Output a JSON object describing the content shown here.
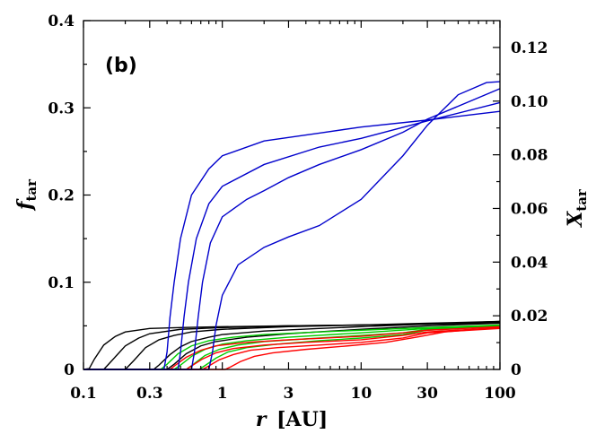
{
  "chart_data": {
    "type": "line",
    "panel_label": "(b)",
    "xlabel": {
      "main": "r",
      "unit": "[AU]"
    },
    "ylabel_left": {
      "main": "f",
      "sub": "tar"
    },
    "ylabel_right": {
      "main": "X",
      "sub": "tar"
    },
    "x_scale": "log",
    "xlim": [
      0.1,
      100
    ],
    "ylim_left": [
      0,
      0.4
    ],
    "ylim_right": [
      0,
      0.13
    ],
    "x_ticks": [
      {
        "value": 0.1,
        "label": "0.1"
      },
      {
        "value": 0.3,
        "label": "0.3"
      },
      {
        "value": 1,
        "label": "1"
      },
      {
        "value": 3,
        "label": "3"
      },
      {
        "value": 10,
        "label": "10"
      },
      {
        "value": 30,
        "label": "30"
      },
      {
        "value": 100,
        "label": "100"
      }
    ],
    "y_left_ticks": [
      {
        "value": 0,
        "label": "0"
      },
      {
        "value": 0.1,
        "label": "0.1"
      },
      {
        "value": 0.2,
        "label": "0.2"
      },
      {
        "value": 0.3,
        "label": "0.3"
      },
      {
        "value": 0.4,
        "label": "0.4"
      }
    ],
    "y_right_ticks": [
      {
        "value": 0,
        "label": "0"
      },
      {
        "value": 0.02,
        "label": "0.02"
      },
      {
        "value": 0.04,
        "label": "0.04"
      },
      {
        "value": 0.06,
        "label": "0.06"
      },
      {
        "value": 0.08,
        "label": "0.08"
      },
      {
        "value": 0.1,
        "label": "0.10"
      },
      {
        "value": 0.12,
        "label": "0.12"
      }
    ],
    "grid": false,
    "series": [
      {
        "color": "#000000",
        "points": [
          [
            0.1,
            0
          ],
          [
            0.11,
            0.001
          ],
          [
            0.12,
            0.012
          ],
          [
            0.14,
            0.028
          ],
          [
            0.17,
            0.038
          ],
          [
            0.2,
            0.043
          ],
          [
            0.3,
            0.047
          ],
          [
            0.5,
            0.048
          ],
          [
            1,
            0.049
          ],
          [
            3,
            0.05
          ],
          [
            10,
            0.051
          ],
          [
            30,
            0.052
          ],
          [
            100,
            0.053
          ]
        ]
      },
      {
        "color": "#000000",
        "points": [
          [
            0.1,
            0
          ],
          [
            0.14,
            0
          ],
          [
            0.16,
            0.01
          ],
          [
            0.2,
            0.027
          ],
          [
            0.25,
            0.036
          ],
          [
            0.3,
            0.041
          ],
          [
            0.5,
            0.046
          ],
          [
            1,
            0.048
          ],
          [
            3,
            0.05
          ],
          [
            10,
            0.051
          ],
          [
            30,
            0.052
          ],
          [
            100,
            0.054
          ]
        ]
      },
      {
        "color": "#000000",
        "points": [
          [
            0.1,
            0
          ],
          [
            0.2,
            0
          ],
          [
            0.23,
            0.01
          ],
          [
            0.28,
            0.025
          ],
          [
            0.35,
            0.034
          ],
          [
            0.45,
            0.039
          ],
          [
            0.6,
            0.043
          ],
          [
            1,
            0.046
          ],
          [
            3,
            0.049
          ],
          [
            10,
            0.051
          ],
          [
            30,
            0.053
          ],
          [
            100,
            0.055
          ]
        ]
      },
      {
        "color": "#000000",
        "points": [
          [
            0.1,
            0
          ],
          [
            0.32,
            0
          ],
          [
            0.35,
            0.005
          ],
          [
            0.42,
            0.017
          ],
          [
            0.5,
            0.026
          ],
          [
            0.6,
            0.032
          ],
          [
            0.8,
            0.037
          ],
          [
            1,
            0.04
          ],
          [
            2,
            0.044
          ],
          [
            5,
            0.047
          ],
          [
            10,
            0.049
          ],
          [
            30,
            0.052
          ],
          [
            100,
            0.055
          ]
        ]
      },
      {
        "color": "#000000",
        "points": [
          [
            0.1,
            0
          ],
          [
            0.4,
            0
          ],
          [
            0.45,
            0.006
          ],
          [
            0.55,
            0.018
          ],
          [
            0.7,
            0.027
          ],
          [
            0.9,
            0.032
          ],
          [
            1.5,
            0.037
          ],
          [
            3,
            0.041
          ],
          [
            10,
            0.046
          ],
          [
            30,
            0.05
          ],
          [
            100,
            0.053
          ]
        ]
      },
      {
        "color": "#00cc00",
        "points": [
          [
            0.1,
            0
          ],
          [
            0.36,
            0
          ],
          [
            0.4,
            0.006
          ],
          [
            0.48,
            0.018
          ],
          [
            0.6,
            0.027
          ],
          [
            0.8,
            0.033
          ],
          [
            1.2,
            0.037
          ],
          [
            2,
            0.04
          ],
          [
            5,
            0.043
          ],
          [
            10,
            0.045
          ],
          [
            30,
            0.048
          ],
          [
            100,
            0.051
          ]
        ]
      },
      {
        "color": "#00cc00",
        "points": [
          [
            0.1,
            0
          ],
          [
            0.45,
            0
          ],
          [
            0.5,
            0.005
          ],
          [
            0.6,
            0.015
          ],
          [
            0.75,
            0.023
          ],
          [
            1,
            0.029
          ],
          [
            1.5,
            0.033
          ],
          [
            3,
            0.037
          ],
          [
            10,
            0.042
          ],
          [
            30,
            0.047
          ],
          [
            100,
            0.05
          ]
        ]
      },
      {
        "color": "#00cc00",
        "points": [
          [
            0.1,
            0
          ],
          [
            0.55,
            0
          ],
          [
            0.62,
            0.006
          ],
          [
            0.75,
            0.016
          ],
          [
            0.95,
            0.023
          ],
          [
            1.3,
            0.028
          ],
          [
            2,
            0.032
          ],
          [
            5,
            0.036
          ],
          [
            10,
            0.039
          ],
          [
            20,
            0.042
          ],
          [
            30,
            0.046
          ],
          [
            100,
            0.05
          ]
        ]
      },
      {
        "color": "#00cc00",
        "points": [
          [
            0.1,
            0
          ],
          [
            0.68,
            0
          ],
          [
            0.76,
            0.005
          ],
          [
            0.9,
            0.013
          ],
          [
            1.1,
            0.02
          ],
          [
            1.5,
            0.025
          ],
          [
            2.5,
            0.029
          ],
          [
            5,
            0.033
          ],
          [
            10,
            0.036
          ],
          [
            20,
            0.04
          ],
          [
            30,
            0.045
          ],
          [
            100,
            0.049
          ]
        ]
      },
      {
        "color": "#ff0000",
        "points": [
          [
            0.1,
            0
          ],
          [
            0.42,
            0
          ],
          [
            0.46,
            0.005
          ],
          [
            0.55,
            0.014
          ],
          [
            0.7,
            0.022
          ],
          [
            0.9,
            0.027
          ],
          [
            1.5,
            0.031
          ],
          [
            3,
            0.034
          ],
          [
            10,
            0.038
          ],
          [
            20,
            0.042
          ],
          [
            30,
            0.045
          ],
          [
            100,
            0.049
          ]
        ]
      },
      {
        "color": "#ff0000",
        "points": [
          [
            0.1,
            0
          ],
          [
            0.55,
            0
          ],
          [
            0.6,
            0.004
          ],
          [
            0.72,
            0.012
          ],
          [
            0.9,
            0.019
          ],
          [
            1.2,
            0.024
          ],
          [
            2,
            0.028
          ],
          [
            4,
            0.031
          ],
          [
            10,
            0.034
          ],
          [
            20,
            0.039
          ],
          [
            30,
            0.043
          ],
          [
            100,
            0.048
          ]
        ]
      },
      {
        "color": "#ff0000",
        "points": [
          [
            0.1,
            0
          ],
          [
            0.72,
            0
          ],
          [
            0.8,
            0.004
          ],
          [
            0.95,
            0.011
          ],
          [
            1.2,
            0.017
          ],
          [
            1.6,
            0.022
          ],
          [
            2.5,
            0.025
          ],
          [
            5,
            0.028
          ],
          [
            10,
            0.031
          ],
          [
            20,
            0.036
          ],
          [
            30,
            0.042
          ],
          [
            100,
            0.047
          ]
        ]
      },
      {
        "color": "#ff0000",
        "points": [
          [
            0.1,
            0
          ],
          [
            1.05,
            0
          ],
          [
            1.15,
            0.003
          ],
          [
            1.35,
            0.009
          ],
          [
            1.7,
            0.015
          ],
          [
            2.3,
            0.019
          ],
          [
            4,
            0.023
          ],
          [
            8,
            0.027
          ],
          [
            15,
            0.031
          ],
          [
            25,
            0.037
          ],
          [
            40,
            0.043
          ],
          [
            100,
            0.048
          ]
        ]
      },
      {
        "color": "#0000cc",
        "points": [
          [
            0.1,
            0
          ],
          [
            0.38,
            0
          ],
          [
            0.4,
            0.02
          ],
          [
            0.42,
            0.06
          ],
          [
            0.45,
            0.1
          ],
          [
            0.5,
            0.15
          ],
          [
            0.6,
            0.2
          ],
          [
            0.8,
            0.23
          ],
          [
            1,
            0.245
          ],
          [
            2,
            0.262
          ],
          [
            5,
            0.271
          ],
          [
            10,
            0.278
          ],
          [
            30,
            0.286
          ],
          [
            100,
            0.296
          ]
        ]
      },
      {
        "color": "#0000cc",
        "points": [
          [
            0.1,
            0
          ],
          [
            0.48,
            0
          ],
          [
            0.5,
            0.02
          ],
          [
            0.53,
            0.06
          ],
          [
            0.57,
            0.1
          ],
          [
            0.65,
            0.15
          ],
          [
            0.8,
            0.19
          ],
          [
            1,
            0.21
          ],
          [
            2,
            0.235
          ],
          [
            5,
            0.255
          ],
          [
            10,
            0.265
          ],
          [
            30,
            0.285
          ],
          [
            100,
            0.306
          ]
        ]
      },
      {
        "color": "#0000cc",
        "points": [
          [
            0.1,
            0
          ],
          [
            0.6,
            0
          ],
          [
            0.63,
            0.02
          ],
          [
            0.67,
            0.06
          ],
          [
            0.72,
            0.1
          ],
          [
            0.82,
            0.145
          ],
          [
            1,
            0.175
          ],
          [
            1.5,
            0.195
          ],
          [
            2,
            0.205
          ],
          [
            3,
            0.22
          ],
          [
            5,
            0.235
          ],
          [
            10,
            0.252
          ],
          [
            20,
            0.272
          ],
          [
            30,
            0.287
          ],
          [
            100,
            0.322
          ]
        ]
      },
      {
        "color": "#0000cc",
        "points": [
          [
            0.1,
            0
          ],
          [
            0.8,
            0
          ],
          [
            0.85,
            0.02
          ],
          [
            0.9,
            0.05
          ],
          [
            1,
            0.085
          ],
          [
            1.3,
            0.12
          ],
          [
            2,
            0.14
          ],
          [
            3,
            0.152
          ],
          [
            5,
            0.165
          ],
          [
            10,
            0.195
          ],
          [
            20,
            0.245
          ],
          [
            30,
            0.28
          ],
          [
            50,
            0.315
          ],
          [
            80,
            0.329
          ],
          [
            100,
            0.33
          ]
        ]
      }
    ]
  }
}
